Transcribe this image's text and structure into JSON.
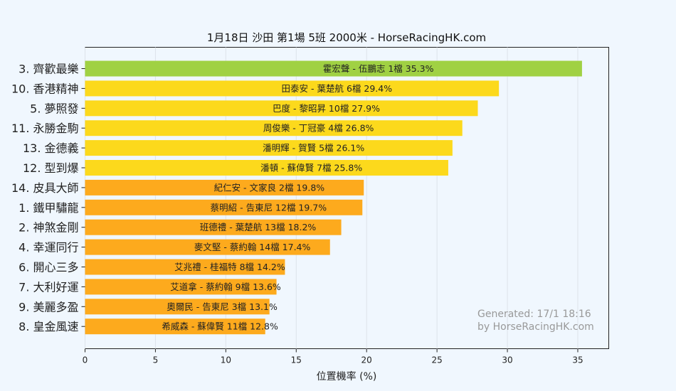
{
  "chart_data": {
    "type": "bar",
    "orientation": "horizontal",
    "title": "1月18日  沙田  第1場  5班  2000米 - HorseRacingHK.com",
    "xlabel": "位置機率 (%)",
    "ylabel": "",
    "xlim": [
      0,
      37.2
    ],
    "xticks": [
      0,
      5,
      10,
      15,
      20,
      25,
      30,
      35
    ],
    "grid": true,
    "categories": [
      "3. 齊歡最樂",
      "10. 香港精神",
      "5. 夢照發",
      "11. 永勝金駒",
      "13. 金德義",
      "12. 型到爆",
      "14. 皮具大師",
      "1. 鐵甲驌龍",
      "2. 神煞金剛",
      "4. 幸運同行",
      "6. 開心三多",
      "7. 大利好運",
      "9. 美麗多盈",
      "8. 皇金風速"
    ],
    "values": [
      35.3,
      29.4,
      27.9,
      26.8,
      26.1,
      25.8,
      19.8,
      19.7,
      18.2,
      17.4,
      14.2,
      13.6,
      13.1,
      12.8
    ],
    "bar_labels": [
      "霍宏聲 - 伍鵬志 1檔  35.3%",
      "田泰安 - 葉楚航 6檔  29.4%",
      "巴度 - 黎昭昇 10檔  27.9%",
      "周俊樂 - 丁冠豪 4檔  26.8%",
      "潘明輝 - 賀賢 5檔  26.1%",
      "潘頓 - 蘇偉賢 7檔  25.8%",
      "紀仁安 - 文家良 2檔  19.8%",
      "蔡明紹 - 告東尼 12檔  19.7%",
      "班德禮 - 葉楚航 13檔  18.2%",
      "麥文堅 - 蔡約翰 14檔  17.4%",
      "艾兆禮 - 桂福特 8檔  14.2%",
      "艾道拿 - 蔡約翰 9檔  13.6%",
      "奧爾民 - 告東尼 3檔  13.1%",
      "希威森 - 蘇偉賢 11檔  12.8%"
    ],
    "bar_colors": [
      "#a0d143",
      "#fcd91c",
      "#fcd91c",
      "#fcd91c",
      "#fcd91c",
      "#fcd91c",
      "#fdaa1d",
      "#fdaa1d",
      "#fdaa1d",
      "#fdaa1d",
      "#fdaa1d",
      "#fdaa1d",
      "#fdaa1d",
      "#fdaa1d"
    ],
    "annotation": [
      "Generated: 17/1 18:16",
      "by HorseRacingHK.com"
    ]
  }
}
